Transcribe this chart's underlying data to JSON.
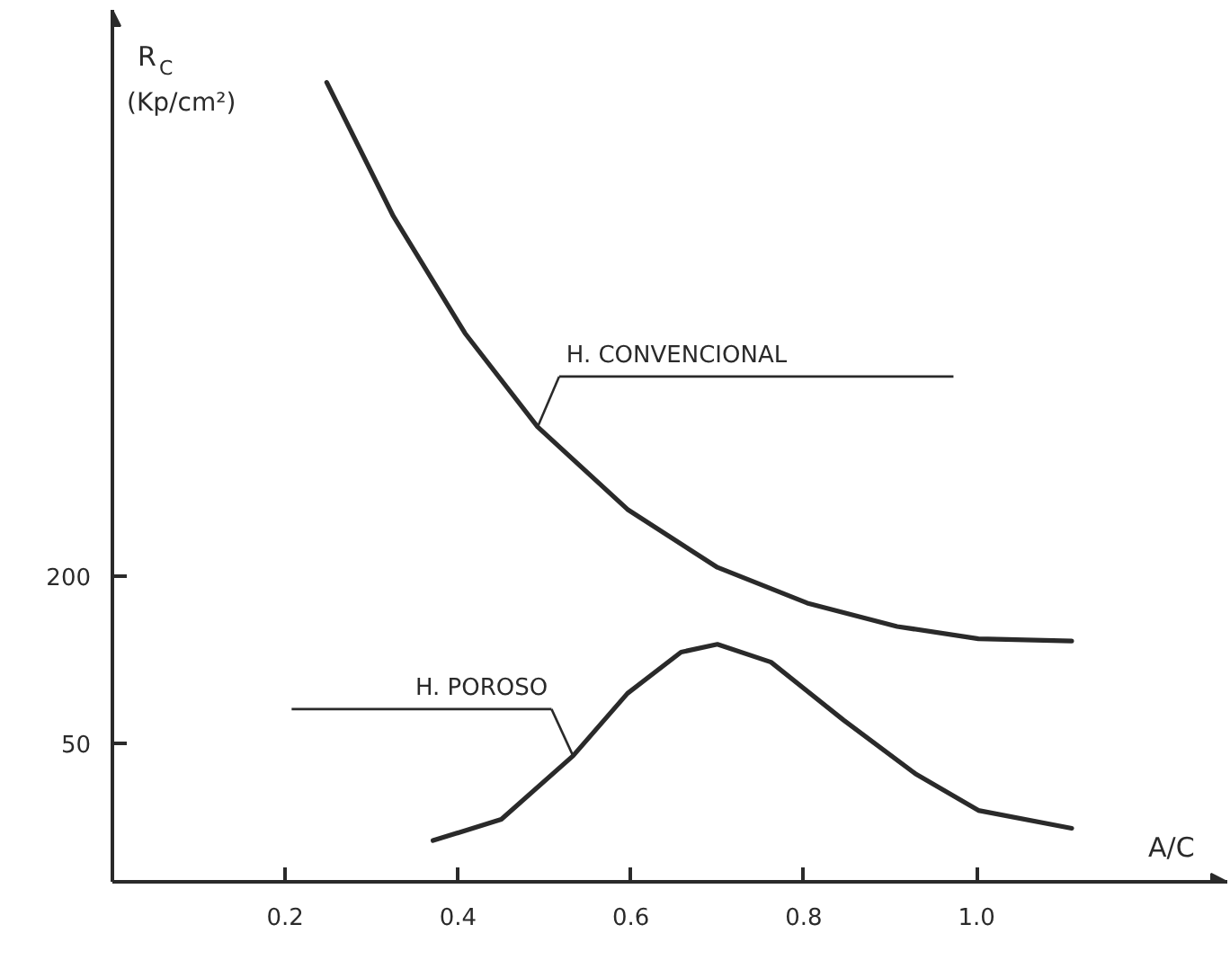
{
  "chart_data": {
    "type": "line",
    "xlabel": "A/C",
    "ylabel": "R$_{C}$ (Kp/cm²)",
    "xlim": [
      0,
      1.29
    ],
    "ylim": [
      -74,
      708
    ],
    "xticks": [
      0.2,
      0.4,
      0.6,
      0.8,
      {
        "value": 1.0,
        "label": "1.0"
      }
    ],
    "yticks": [
      50,
      200
    ],
    "grid": false,
    "legend": false,
    "marker": "none",
    "line_style": "solid",
    "series": [
      {
        "name": "H. CONVENCIONAL",
        "color": "#2a2a2a",
        "x": [
          0.248,
          0.325,
          0.408,
          0.492,
          0.596,
          0.7,
          0.804,
          0.908,
          1.002,
          1.11
        ],
        "values": [
          643,
          523,
          418,
          334,
          260,
          208,
          176,
          155,
          144,
          142
        ]
      },
      {
        "name": "H. POROSO",
        "color": "#2a2a2a",
        "x": [
          0.371,
          0.45,
          0.533,
          0.596,
          0.658,
          0.7,
          0.762,
          0.846,
          0.929,
          1.002,
          1.11
        ],
        "values": [
          -37,
          -18,
          39,
          95,
          132,
          139,
          123,
          71,
          23,
          -10,
          -26
        ]
      }
    ]
  }
}
